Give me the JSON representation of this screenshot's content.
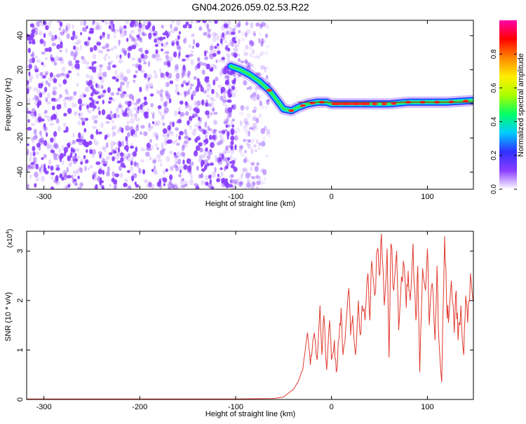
{
  "title": "GN04.2026.059.02.53.R22",
  "colors": {
    "snr_line": "#e03a2f",
    "trace_line": "#b00000",
    "speckle": "#8a3dff",
    "axis": "#000000"
  },
  "chart_data": [
    {
      "type": "heatmap",
      "name": "spectrogram",
      "xlabel": "Height of straight line (km)",
      "ylabel": "Frequency (Hz)",
      "xlim": [
        -318,
        148
      ],
      "ylim": [
        -50,
        49
      ],
      "xticks": [
        -300,
        -200,
        -100,
        0,
        100
      ],
      "yticks": [
        -40,
        -20,
        0,
        20,
        40
      ],
      "grid": false,
      "ridge": {
        "x": [
          -105,
          -95,
          -85,
          -75,
          -65,
          -58,
          -50,
          -42,
          -35,
          -25,
          -15,
          -5,
          0,
          20,
          40,
          60,
          80,
          100,
          120,
          148
        ],
        "y": [
          22,
          20,
          17,
          13,
          8,
          3,
          -3,
          -4,
          -2,
          0,
          1,
          1,
          0,
          0,
          0,
          0,
          1,
          1,
          1,
          2
        ]
      },
      "colorbar": {
        "label": "Normalized spectral amplitude",
        "range": [
          0,
          1
        ],
        "ticks": [
          "0.0",
          "0.2",
          "0.4",
          "0.6",
          "0.8"
        ],
        "tick_values": [
          0.0,
          0.2,
          0.4,
          0.6,
          0.8
        ],
        "colormap": [
          "#ffffff",
          "#8a3dff",
          "#3030ff",
          "#00ccff",
          "#00ff66",
          "#aaff00",
          "#ffee00",
          "#ff8800",
          "#ff0000",
          "#ff00aa"
        ]
      }
    },
    {
      "type": "line",
      "name": "snr",
      "xlabel": "Height of straight line (km)",
      "ylabel": "SNR (10 * v/v)",
      "yunit": "(x10",
      "yunit_exp": "4",
      "yunit_close": ")",
      "xlim": [
        -318,
        148
      ],
      "ylim": [
        0,
        3.4
      ],
      "xticks": [
        -300,
        -200,
        -100,
        0,
        100
      ],
      "yticks": [
        0,
        1,
        2,
        3
      ],
      "grid": false,
      "series": [
        {
          "x": [
            -318,
            -100,
            -60,
            -50,
            -40,
            -35,
            -30,
            -28,
            -25,
            -22,
            -20,
            -18,
            -15,
            -12,
            -10,
            -8,
            -5,
            -2,
            0,
            3,
            5,
            8,
            10,
            12,
            15,
            18,
            20,
            22,
            25,
            28,
            30,
            32,
            35,
            38,
            40,
            42,
            45,
            48,
            50,
            52,
            55,
            58,
            60,
            62,
            65,
            68,
            70,
            72,
            75,
            78,
            80,
            82,
            85,
            88,
            90,
            92,
            95,
            98,
            100,
            102,
            105,
            108,
            110,
            112,
            115,
            118,
            120,
            122,
            125,
            128,
            130,
            132,
            135,
            138,
            140,
            142,
            145,
            148
          ],
          "y": [
            0.01,
            0.01,
            0.02,
            0.05,
            0.2,
            0.35,
            0.6,
            0.9,
            1.35,
            0.7,
            1.05,
            1.35,
            0.8,
            1.9,
            0.9,
            1.7,
            0.6,
            1.6,
            0.8,
            1.2,
            0.55,
            1.25,
            1.85,
            0.9,
            1.5,
            2.25,
            1.3,
            1.7,
            0.9,
            2.0,
            1.3,
            1.9,
            1.6,
            2.55,
            1.6,
            2.8,
            2.1,
            3.05,
            2.5,
            3.35,
            1.9,
            3.05,
            0.85,
            3.15,
            2.2,
            3.0,
            1.4,
            2.1,
            2.8,
            1.85,
            2.6,
            2.0,
            3.15,
            1.6,
            2.7,
            0.55,
            2.65,
            2.2,
            3.05,
            1.5,
            2.35,
            1.2,
            2.7,
            1.2,
            0.35,
            3.3,
            2.0,
            1.55,
            2.4,
            1.35,
            2.2,
            1.2,
            1.9,
            0.9,
            2.1,
            1.55,
            2.55,
            1.95
          ]
        }
      ]
    }
  ]
}
